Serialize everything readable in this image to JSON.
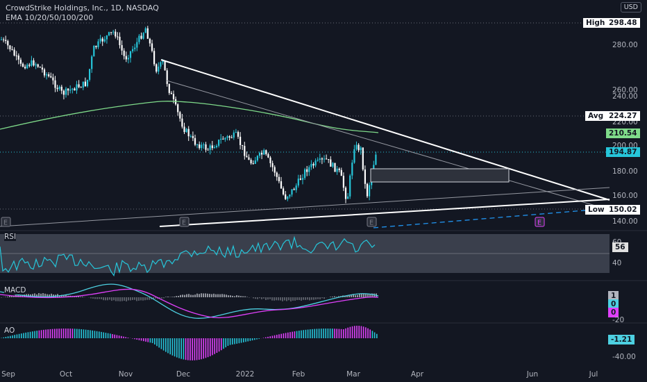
{
  "header": {
    "title": "CrowdStrike Holdings, Inc., 1D, NASDAQ",
    "indicators": "EMA 10/20/50/100/200",
    "currency": "USD"
  },
  "price_axis": {
    "ticks": [
      "280.00",
      "260.00",
      "240.00",
      "220.00",
      "200.00",
      "180.00",
      "160.00",
      "140.00"
    ],
    "high": {
      "label": "High",
      "value": "298.48"
    },
    "avg": {
      "label": "Avg",
      "value": "224.27"
    },
    "low": {
      "label": "Low",
      "value": "150.02"
    },
    "ema_value": "210.54",
    "last_price": "194.87"
  },
  "time_axis": {
    "ticks": [
      "Sep",
      "Oct",
      "Nov",
      "Dec",
      "2022",
      "Feb",
      "Mar",
      "Apr",
      "Jun",
      "Jul"
    ]
  },
  "panes": {
    "rsi": {
      "label": "RSI",
      "value": "56",
      "ticks": [
        "60",
        "40"
      ]
    },
    "macd": {
      "label": "MACD",
      "values": [
        "1",
        "0",
        "0"
      ],
      "tick": "-20"
    },
    "ao": {
      "label": "AO",
      "value": "-1.21",
      "tick": "-40.00"
    }
  },
  "earnings_marker": "E",
  "colors": {
    "background": "#131722",
    "up": "#26c6da",
    "down": "#ffffff",
    "ema_line": "#7fdb8a",
    "macd_line": "#4dd0e1",
    "signal_line": "#e040fb",
    "rsi_band": "#3a3f4c",
    "trendline": "#ffffff",
    "projection": "#2196f3"
  }
}
